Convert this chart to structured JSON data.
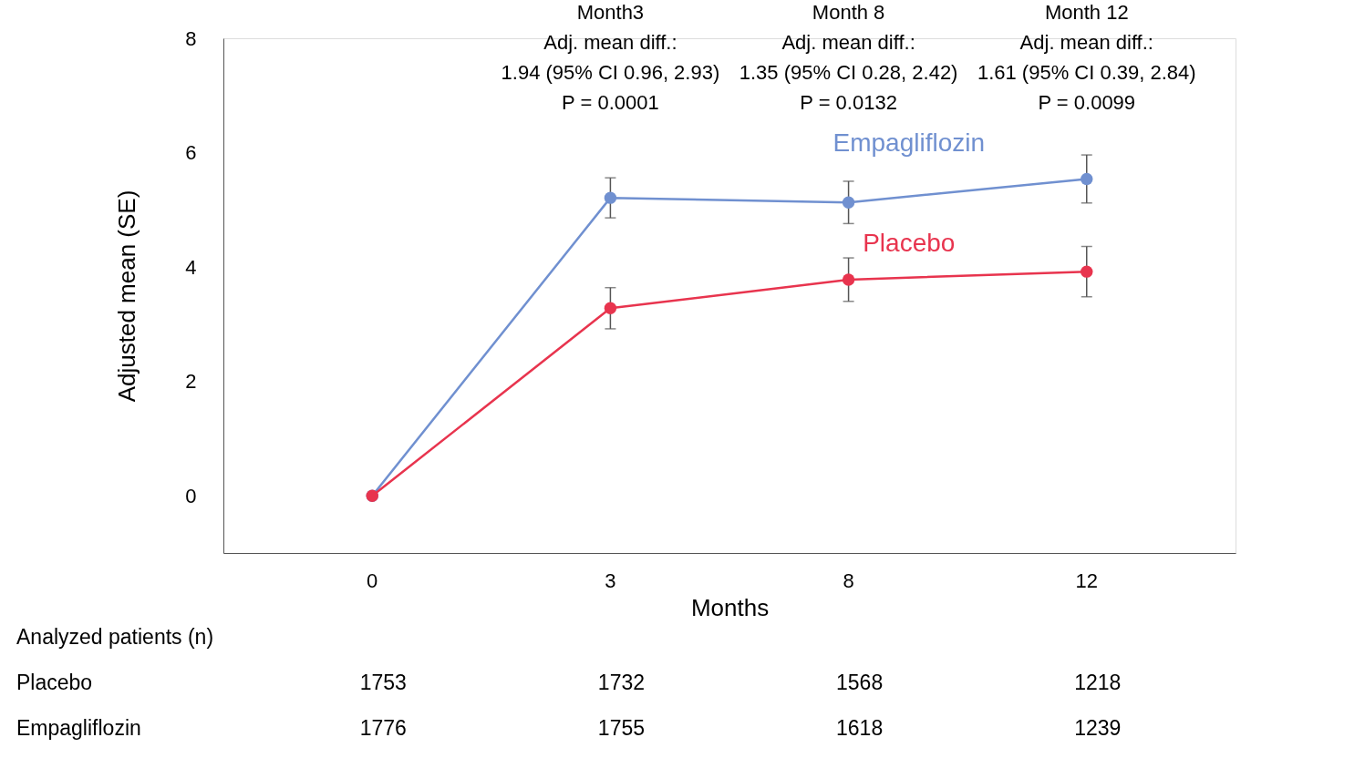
{
  "chart_data": {
    "type": "line",
    "xlabel": "Months",
    "ylabel": "Adjusted mean (SE)",
    "categories": [
      "0",
      "3",
      "8",
      "12"
    ],
    "series": [
      {
        "name": "Empagliflozin",
        "color": "#7090d0",
        "values": [
          0,
          5.21,
          5.13,
          5.54
        ],
        "errors": [
          null,
          0.35,
          0.37,
          0.42
        ]
      },
      {
        "name": "Placebo",
        "color": "#e8344e",
        "values": [
          0,
          3.28,
          3.78,
          3.92
        ],
        "errors": [
          null,
          0.36,
          0.38,
          0.44
        ]
      }
    ],
    "ylim": [
      -1,
      8
    ],
    "yticks": [
      0,
      2,
      4,
      6,
      8
    ],
    "grid": false,
    "legend": false,
    "marker": "circle",
    "line_style": "solid",
    "annotations": [
      "Month3\nAdj. mean diff.:\n1.94 (95% CI 0.96, 2.93)\nP = 0.0001",
      "Month 8\nAdj. mean diff.:\n1.35 (95% CI 0.28, 2.42)\nP = 0.0132",
      "Month 12\nAdj. mean diff.:\n1.61 (95% CI 0.39, 2.84)\nP = 0.0099",
      "Analyzed patients (n)",
      "Placebo",
      "1753",
      "1732",
      "1568",
      "1218",
      "Empagliflozin",
      "1776",
      "1755",
      "1618",
      "1239"
    ]
  }
}
